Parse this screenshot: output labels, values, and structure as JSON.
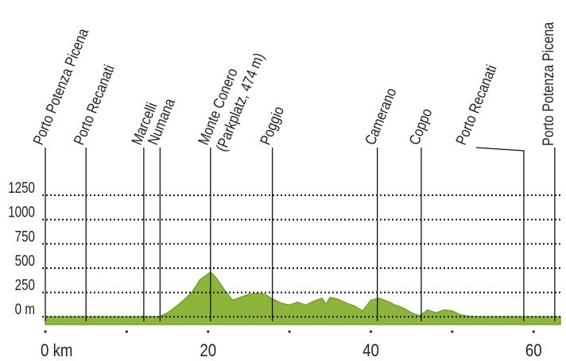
{
  "chart_data": {
    "type": "area",
    "x": [
      0,
      5,
      10,
      14,
      15,
      16,
      17,
      18,
      19,
      20,
      20.3,
      21,
      22,
      23,
      24,
      25,
      26,
      27,
      28,
      29,
      30,
      31,
      32,
      33,
      34,
      34.5,
      35,
      36,
      37,
      38,
      39,
      40,
      41,
      42,
      43,
      44,
      45,
      46,
      47,
      48,
      49,
      50,
      51,
      52,
      53,
      58,
      63.3
    ],
    "values": [
      0,
      0,
      0,
      0,
      40,
      100,
      170,
      250,
      380,
      440,
      460,
      400,
      280,
      170,
      200,
      230,
      240,
      230,
      180,
      140,
      120,
      150,
      120,
      160,
      190,
      130,
      200,
      180,
      140,
      110,
      60,
      170,
      190,
      160,
      120,
      90,
      40,
      10,
      70,
      40,
      70,
      60,
      20,
      5,
      0,
      0,
      0
    ],
    "color": "#8db53c",
    "xlim": [
      0,
      63.3
    ],
    "xticks": [
      {
        "value": 0,
        "label": "0 km"
      },
      20,
      40,
      60
    ],
    "xminor_ticks": [
      10,
      30,
      50
    ],
    "ylim": [
      -80,
      1300
    ],
    "yticks": [
      {
        "value": 0,
        "label": "0 m"
      },
      250,
      500,
      750,
      1000,
      1250
    ],
    "grid": true,
    "annotations": [
      {
        "label": "Porto Potenza Picena",
        "x": 0
      },
      {
        "label": "Porto Recanati",
        "x": 5
      },
      {
        "label": "Marcelli",
        "x": 12.1
      },
      {
        "label": "Numana",
        "x": 14.1
      },
      {
        "label": "Monte Conero",
        "note": "(Parkplatz, 474 m)",
        "x": 20.3
      },
      {
        "label": "Poggio",
        "x": 27.9
      },
      {
        "label": "Camerano",
        "x": 40.8
      },
      {
        "label": "Coppo",
        "x": 46.2
      },
      {
        "label": "Porto Recanati",
        "x": 58.8
      },
      {
        "label": "Porto Potenza Picena",
        "x": 62.6
      }
    ]
  }
}
